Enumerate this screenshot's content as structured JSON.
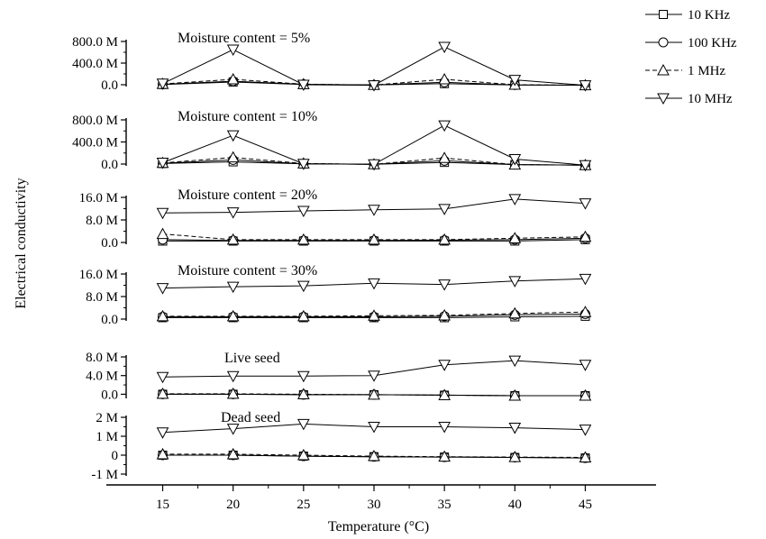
{
  "chart_data": {
    "type": "line",
    "figure": {
      "xlabel": "Temperature (°C)",
      "ylabel": "Electrical conductivity",
      "x_ticks": [
        15,
        20,
        25,
        30,
        35,
        40,
        45
      ],
      "xlim": [
        11,
        49
      ],
      "legend_position": "top-right"
    },
    "legend": [
      {
        "label": "10 KHz",
        "marker": "square",
        "dash": "solid"
      },
      {
        "label": "100 KHz",
        "marker": "circle",
        "dash": "solid"
      },
      {
        "label": "1 MHz",
        "marker": "triangle-up",
        "dash": "dashed"
      },
      {
        "label": "10 MHz",
        "marker": "triangle-down",
        "dash": "solid"
      }
    ],
    "panels": [
      {
        "title": "Moisture content = 5%",
        "ylim": [
          0,
          800
        ],
        "yticks": [
          {
            "v": 0,
            "label": "0.0"
          },
          {
            "v": 400,
            "label": "400.0 M"
          },
          {
            "v": 800,
            "label": "800.0 M"
          }
        ],
        "x": [
          15,
          20,
          25,
          30,
          35,
          40,
          45
        ],
        "series": [
          {
            "name": "10 KHz",
            "values": [
              5,
              50,
              5,
              -5,
              20,
              -5,
              -10
            ]
          },
          {
            "name": "100 KHz",
            "values": [
              8,
              65,
              8,
              -5,
              45,
              -5,
              -10
            ]
          },
          {
            "name": "1 MHz",
            "values": [
              15,
              100,
              10,
              -5,
              100,
              0,
              -10
            ]
          },
          {
            "name": "10 MHz",
            "values": [
              20,
              650,
              0,
              -10,
              700,
              90,
              -10
            ]
          }
        ]
      },
      {
        "title": "Moisture content = 10%",
        "ylim": [
          0,
          800
        ],
        "yticks": [
          {
            "v": 0,
            "label": "0.0"
          },
          {
            "v": 400,
            "label": "400.0 M"
          },
          {
            "v": 800,
            "label": "800.0 M"
          }
        ],
        "x": [
          15,
          20,
          25,
          30,
          35,
          40,
          45
        ],
        "series": [
          {
            "name": "10 KHz",
            "values": [
              10,
              40,
              5,
              -5,
              30,
              -10,
              -20
            ]
          },
          {
            "name": "100 KHz",
            "values": [
              15,
              75,
              5,
              -5,
              60,
              -10,
              -20
            ]
          },
          {
            "name": "1 MHz",
            "values": [
              20,
              120,
              10,
              -5,
              110,
              -10,
              -20
            ]
          },
          {
            "name": "10 MHz",
            "values": [
              25,
              520,
              5,
              -5,
              700,
              90,
              -20
            ]
          }
        ]
      },
      {
        "title": "Moisture content = 20%",
        "ylim": [
          0,
          16
        ],
        "yticks": [
          {
            "v": 0,
            "label": "0.0"
          },
          {
            "v": 8,
            "label": "8.0 M"
          },
          {
            "v": 16,
            "label": "16.0 M"
          }
        ],
        "x": [
          15,
          20,
          25,
          30,
          35,
          40,
          45
        ],
        "series": [
          {
            "name": "10 KHz",
            "values": [
              0.5,
              0.5,
              0.5,
              0.5,
              0.5,
              0.5,
              1.0
            ]
          },
          {
            "name": "100 KHz",
            "values": [
              1.0,
              0.7,
              0.7,
              0.7,
              0.8,
              1.0,
              1.5
            ]
          },
          {
            "name": "1 MHz",
            "values": [
              3.0,
              1.0,
              1.0,
              1.0,
              1.0,
              1.5,
              2.0
            ]
          },
          {
            "name": "10 MHz",
            "values": [
              10.5,
              10.7,
              11.2,
              11.6,
              11.9,
              15.4,
              13.9
            ]
          }
        ]
      },
      {
        "title": "Moisture content = 30%",
        "ylim": [
          0,
          16
        ],
        "yticks": [
          {
            "v": 0,
            "label": "0.0"
          },
          {
            "v": 8,
            "label": "8.0 M"
          },
          {
            "v": 16,
            "label": "16.0 M"
          }
        ],
        "x": [
          15,
          20,
          25,
          30,
          35,
          40,
          45
        ],
        "series": [
          {
            "name": "10 KHz",
            "values": [
              0.5,
              0.5,
              0.5,
              0.5,
              0.5,
              0.8,
              1.0
            ]
          },
          {
            "name": "100 KHz",
            "values": [
              0.8,
              0.8,
              0.8,
              0.8,
              1.0,
              1.5,
              1.8
            ]
          },
          {
            "name": "1 MHz",
            "values": [
              1.0,
              1.0,
              1.0,
              1.2,
              1.3,
              2.0,
              2.5
            ]
          },
          {
            "name": "10 MHz",
            "values": [
              11.0,
              11.5,
              11.8,
              12.7,
              12.3,
              13.5,
              14.3
            ]
          }
        ]
      },
      {
        "title": "Live seed",
        "ylim": [
          -0.5,
          8
        ],
        "yticks": [
          {
            "v": 0,
            "label": "0.0"
          },
          {
            "v": 4,
            "label": "4.0 M"
          },
          {
            "v": 8,
            "label": "8.0 M"
          }
        ],
        "x": [
          15,
          20,
          25,
          30,
          35,
          40,
          45
        ],
        "series": [
          {
            "name": "10 KHz",
            "values": [
              0.0,
              0.0,
              -0.1,
              -0.1,
              -0.2,
              -0.3,
              -0.3
            ]
          },
          {
            "name": "100 KHz",
            "values": [
              0.0,
              0.0,
              -0.1,
              -0.1,
              -0.2,
              -0.3,
              -0.3
            ]
          },
          {
            "name": "1 MHz",
            "values": [
              0.1,
              0.1,
              0.0,
              -0.1,
              -0.2,
              -0.3,
              -0.3
            ]
          },
          {
            "name": "10 MHz",
            "values": [
              3.7,
              3.9,
              3.9,
              4.0,
              6.3,
              7.2,
              6.3
            ]
          }
        ]
      },
      {
        "title": "Dead seed",
        "ylim": [
          -1,
          2
        ],
        "yticks": [
          {
            "v": -1,
            "label": "-1 M"
          },
          {
            "v": 0,
            "label": "0"
          },
          {
            "v": 1,
            "label": "1 M"
          },
          {
            "v": 2,
            "label": "2 M"
          }
        ],
        "x": [
          15,
          20,
          25,
          30,
          35,
          40,
          45
        ],
        "series": [
          {
            "name": "10 KHz",
            "values": [
              0.0,
              0.0,
              -0.05,
              -0.08,
              -0.1,
              -0.12,
              -0.15
            ]
          },
          {
            "name": "100 KHz",
            "values": [
              0.0,
              0.0,
              -0.05,
              -0.08,
              -0.1,
              -0.12,
              -0.15
            ]
          },
          {
            "name": "1 MHz",
            "values": [
              0.05,
              0.05,
              0.0,
              -0.05,
              -0.08,
              -0.1,
              -0.12
            ]
          },
          {
            "name": "10 MHz",
            "values": [
              1.2,
              1.4,
              1.65,
              1.5,
              1.5,
              1.45,
              1.35
            ]
          }
        ]
      }
    ]
  }
}
